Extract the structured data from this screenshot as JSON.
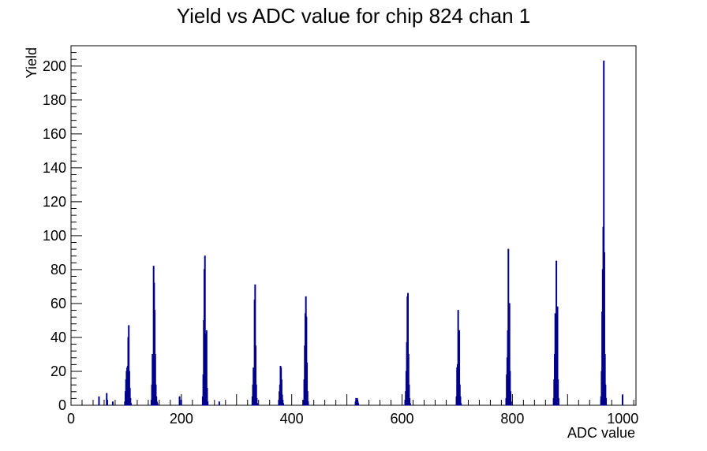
{
  "chart_data": {
    "type": "histogram",
    "title": "Yield vs ADC value for chip 824 chan 1",
    "xlabel": "ADC value",
    "ylabel": "Yield",
    "xlim": [
      0,
      1024
    ],
    "ylim": [
      0,
      212
    ],
    "x_ticks": [
      0,
      200,
      400,
      600,
      800,
      1000
    ],
    "y_ticks": [
      0,
      20,
      40,
      60,
      80,
      100,
      120,
      140,
      160,
      180,
      200
    ],
    "grid": false,
    "legend": "none",
    "line_color": "#00008b",
    "x": [
      50,
      64,
      65,
      75,
      97,
      98,
      99,
      100,
      101,
      102,
      103,
      104,
      105,
      106,
      107,
      108,
      145,
      146,
      147,
      148,
      149,
      150,
      151,
      152,
      153,
      154,
      155,
      156,
      196,
      199,
      238,
      239,
      240,
      241,
      242,
      243,
      244,
      245,
      246,
      247,
      268,
      328,
      329,
      330,
      331,
      332,
      333,
      334,
      335,
      336,
      337,
      376,
      377,
      378,
      379,
      380,
      381,
      382,
      383,
      384,
      421,
      422,
      423,
      424,
      425,
      426,
      427,
      428,
      429,
      515,
      516,
      517,
      518,
      519,
      520,
      605,
      606,
      607,
      608,
      609,
      610,
      611,
      612,
      613,
      614,
      698,
      699,
      700,
      701,
      702,
      703,
      704,
      705,
      706,
      788,
      789,
      790,
      791,
      792,
      793,
      794,
      795,
      796,
      797,
      874,
      875,
      876,
      877,
      878,
      879,
      880,
      881,
      882,
      883,
      960,
      961,
      962,
      963,
      964,
      965,
      966,
      967,
      968,
      969,
      999
    ],
    "values": [
      5,
      7,
      3,
      2,
      2,
      8,
      15,
      20,
      22,
      23,
      40,
      47,
      20,
      10,
      4,
      1,
      3,
      12,
      30,
      17,
      82,
      72,
      56,
      30,
      12,
      5,
      2,
      1,
      5,
      3,
      5,
      18,
      50,
      80,
      88,
      42,
      28,
      44,
      10,
      2,
      2,
      5,
      12,
      22,
      13,
      62,
      71,
      35,
      12,
      4,
      1,
      3,
      8,
      12,
      23,
      22,
      15,
      6,
      3,
      1,
      3,
      15,
      35,
      54,
      64,
      52,
      25,
      8,
      2,
      2,
      4,
      3,
      4,
      2,
      1,
      3,
      8,
      20,
      37,
      64,
      66,
      30,
      12,
      4,
      1,
      5,
      22,
      24,
      56,
      27,
      44,
      12,
      5,
      1,
      4,
      18,
      28,
      44,
      92,
      45,
      60,
      20,
      8,
      2,
      4,
      15,
      30,
      54,
      47,
      85,
      52,
      58,
      15,
      4,
      5,
      20,
      55,
      80,
      105,
      203,
      90,
      30,
      12,
      4,
      6
    ]
  }
}
